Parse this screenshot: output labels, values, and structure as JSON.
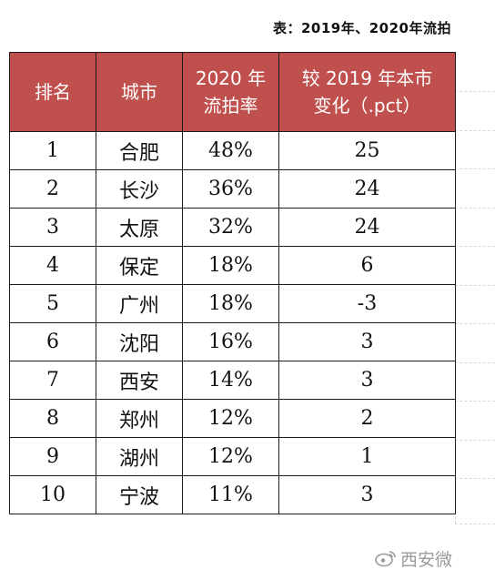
{
  "title": "表：2019年、2020年流拍",
  "table": {
    "headers": [
      "排名",
      "城市",
      "2020 年流拍率",
      "较 2019 年本市变化（.pct）"
    ],
    "headers_display": [
      [
        "排名"
      ],
      [
        "城市"
      ],
      [
        "2020 年",
        "流拍率"
      ],
      [
        "较 2019 年本市",
        "变化（.pct）"
      ]
    ],
    "rows": [
      [
        "1",
        "合肥",
        "48%",
        "25"
      ],
      [
        "2",
        "长沙",
        "36%",
        "24"
      ],
      [
        "3",
        "太原",
        "32%",
        "24"
      ],
      [
        "4",
        "保定",
        "18%",
        "6"
      ],
      [
        "5",
        "广州",
        "18%",
        "-3"
      ],
      [
        "6",
        "沈阳",
        "16%",
        "3"
      ],
      [
        "7",
        "西安",
        "14%",
        "3"
      ],
      [
        "8",
        "郑州",
        "12%",
        "2"
      ],
      [
        "9",
        "湖州",
        "12%",
        "1"
      ],
      [
        "10",
        "宁波",
        "11%",
        "3"
      ]
    ]
  },
  "colors": {
    "header_bg": "#c0504d",
    "header_text": "#ffffff",
    "border": "#1a1a1a"
  },
  "watermark": {
    "icon": "weibo-icon",
    "text": "西安微"
  }
}
